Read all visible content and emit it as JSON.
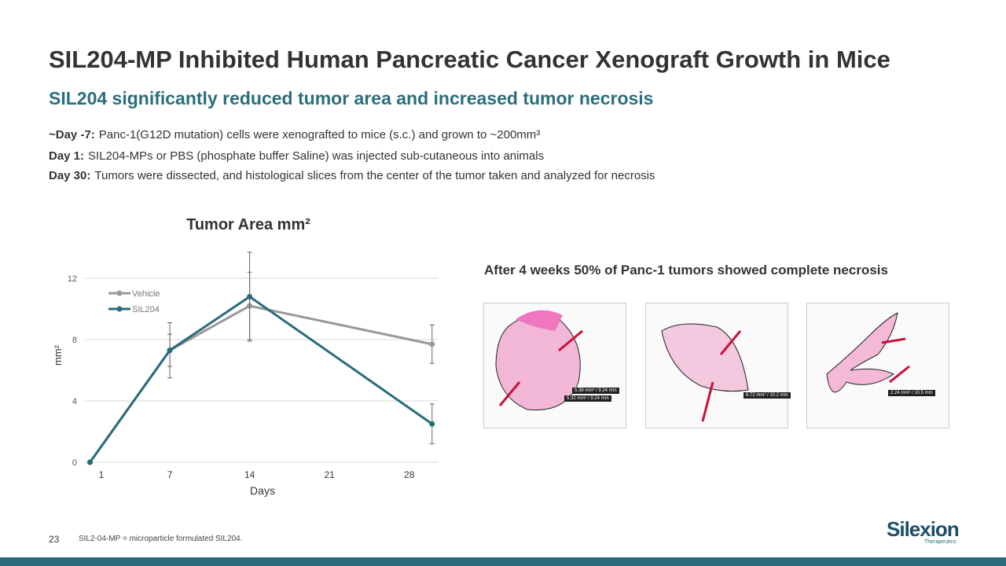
{
  "header": {
    "title": "SIL204-MP Inhibited Human Pancreatic Cancer Xenograft Growth in Mice",
    "subtitle": "SIL204 significantly reduced tumor area and increased tumor necrosis"
  },
  "notes": [
    {
      "label": "~Day -7:",
      "text": "Panc-1(G12D mutation) cells were xenografted to mice (s.c.) and grown to ~200mm³"
    },
    {
      "label": "Day 1:",
      "text": "SIL204-MPs or PBS (phosphate buffer Saline) was injected sub-cutaneous into animals"
    },
    {
      "label": "Day 30:",
      "text": "Tumors were dissected, and histological slices from the center of the tumor taken and analyzed for necrosis"
    }
  ],
  "chart_data": {
    "type": "line",
    "title": "Tumor Area mm²",
    "x_label": "Days",
    "y_label": "mm²",
    "x": [
      0,
      7,
      14,
      30
    ],
    "xlim": [
      -1,
      30.5
    ],
    "xticks": [
      1,
      7,
      14,
      21,
      28
    ],
    "ylim": [
      0,
      14
    ],
    "yticks": [
      0,
      4,
      8,
      12
    ],
    "grid": true,
    "legend": "upper left",
    "series": [
      {
        "name": "Vehicle",
        "color": "#999999",
        "values": [
          0,
          7.3,
          10.2,
          7.7
        ],
        "errors": [
          0,
          1.8,
          2.2,
          1.25
        ]
      },
      {
        "name": "SIL204",
        "color": "#2a6b7c",
        "values": [
          0,
          7.3,
          10.8,
          2.5
        ],
        "errors": [
          0,
          1.05,
          2.9,
          1.3
        ]
      }
    ]
  },
  "histology": {
    "caption": "After 4 weeks 50% of Panc-1 tumors showed  complete necrosis",
    "images": [
      {
        "labels": [
          "5.36 mm² / 9.24 mm",
          "5.32 mm² / 9.24 mm"
        ]
      },
      {
        "labels": [
          "6.72 mm² / 10.2 mm"
        ]
      },
      {
        "labels": [
          "2.24 mm² / 10.5 mm"
        ]
      }
    ]
  },
  "footer": {
    "page": "23",
    "note": "SIL2-04-MP = microparticle formulated SIL204.",
    "logo": "Silexion",
    "logo_sub": "Therapeutics"
  }
}
